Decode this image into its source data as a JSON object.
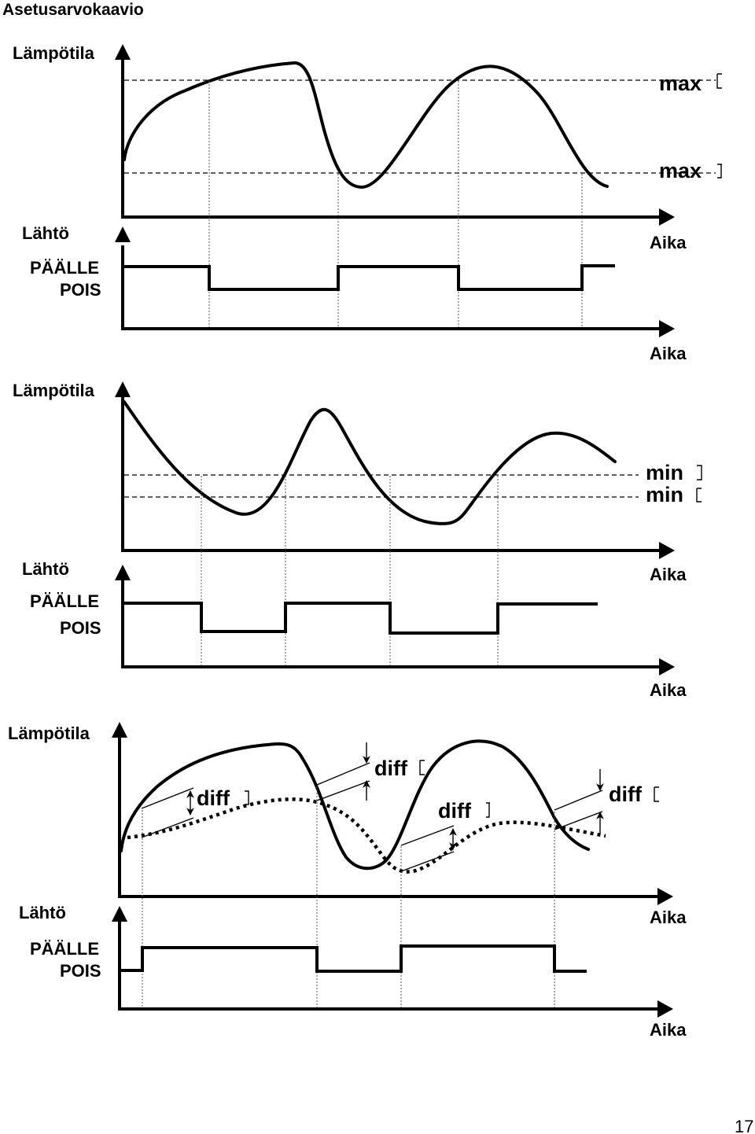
{
  "title": "Asetusarvokaavio",
  "page_number": "17",
  "panels": [
    {
      "temp_label": "Lämpötila",
      "output_label": "Lähtö",
      "on_label": "PÄÄLLE",
      "off_label": "POIS",
      "time_label_temp": "Aika",
      "time_label_output": "Aika",
      "upper_threshold": "max",
      "lower_threshold": "max"
    },
    {
      "temp_label": "Lämpötila",
      "output_label": "Lähtö",
      "on_label": "PÄÄLLE",
      "off_label": "POIS",
      "time_label_temp": "Aika",
      "time_label_output": "Aika",
      "upper_threshold": "min",
      "lower_threshold": "min"
    },
    {
      "temp_label": "Lämpötila",
      "output_label": "Lähtö",
      "on_label": "PÄÄLLE",
      "off_label": "POIS",
      "time_label_temp": "Aika",
      "time_label_output": "Aika",
      "diff_labels": [
        "diff",
        "diff",
        "diff",
        "diff"
      ]
    }
  ]
}
